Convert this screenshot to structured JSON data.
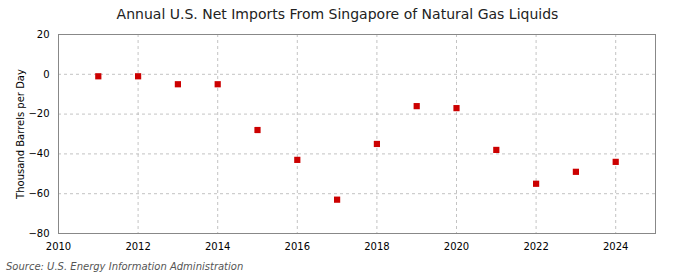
{
  "chart_data": {
    "type": "scatter",
    "title": "Annual U.S. Net Imports From Singapore of Natural Gas Liquids",
    "ylabel": "Thousand Barrels per Day",
    "annotation": "Source: U.S. Energy Information Administration",
    "x": [
      2011,
      2012,
      2013,
      2014,
      2015,
      2016,
      2017,
      2018,
      2019,
      2020,
      2021,
      2022,
      2023,
      2024
    ],
    "values": [
      -1,
      -1,
      -5,
      -5,
      -28,
      -43,
      -63,
      -35,
      -16,
      -17,
      -38,
      -55,
      -49,
      -44
    ],
    "color": "#cc0000",
    "marker": "square",
    "xlim": [
      2010,
      2025
    ],
    "ylim": [
      -80,
      20
    ],
    "xticks": [
      2010,
      2012,
      2014,
      2016,
      2018,
      2020,
      2022,
      2024
    ],
    "yticks": [
      -80,
      -60,
      -40,
      -20,
      0,
      20
    ],
    "grid": true
  }
}
